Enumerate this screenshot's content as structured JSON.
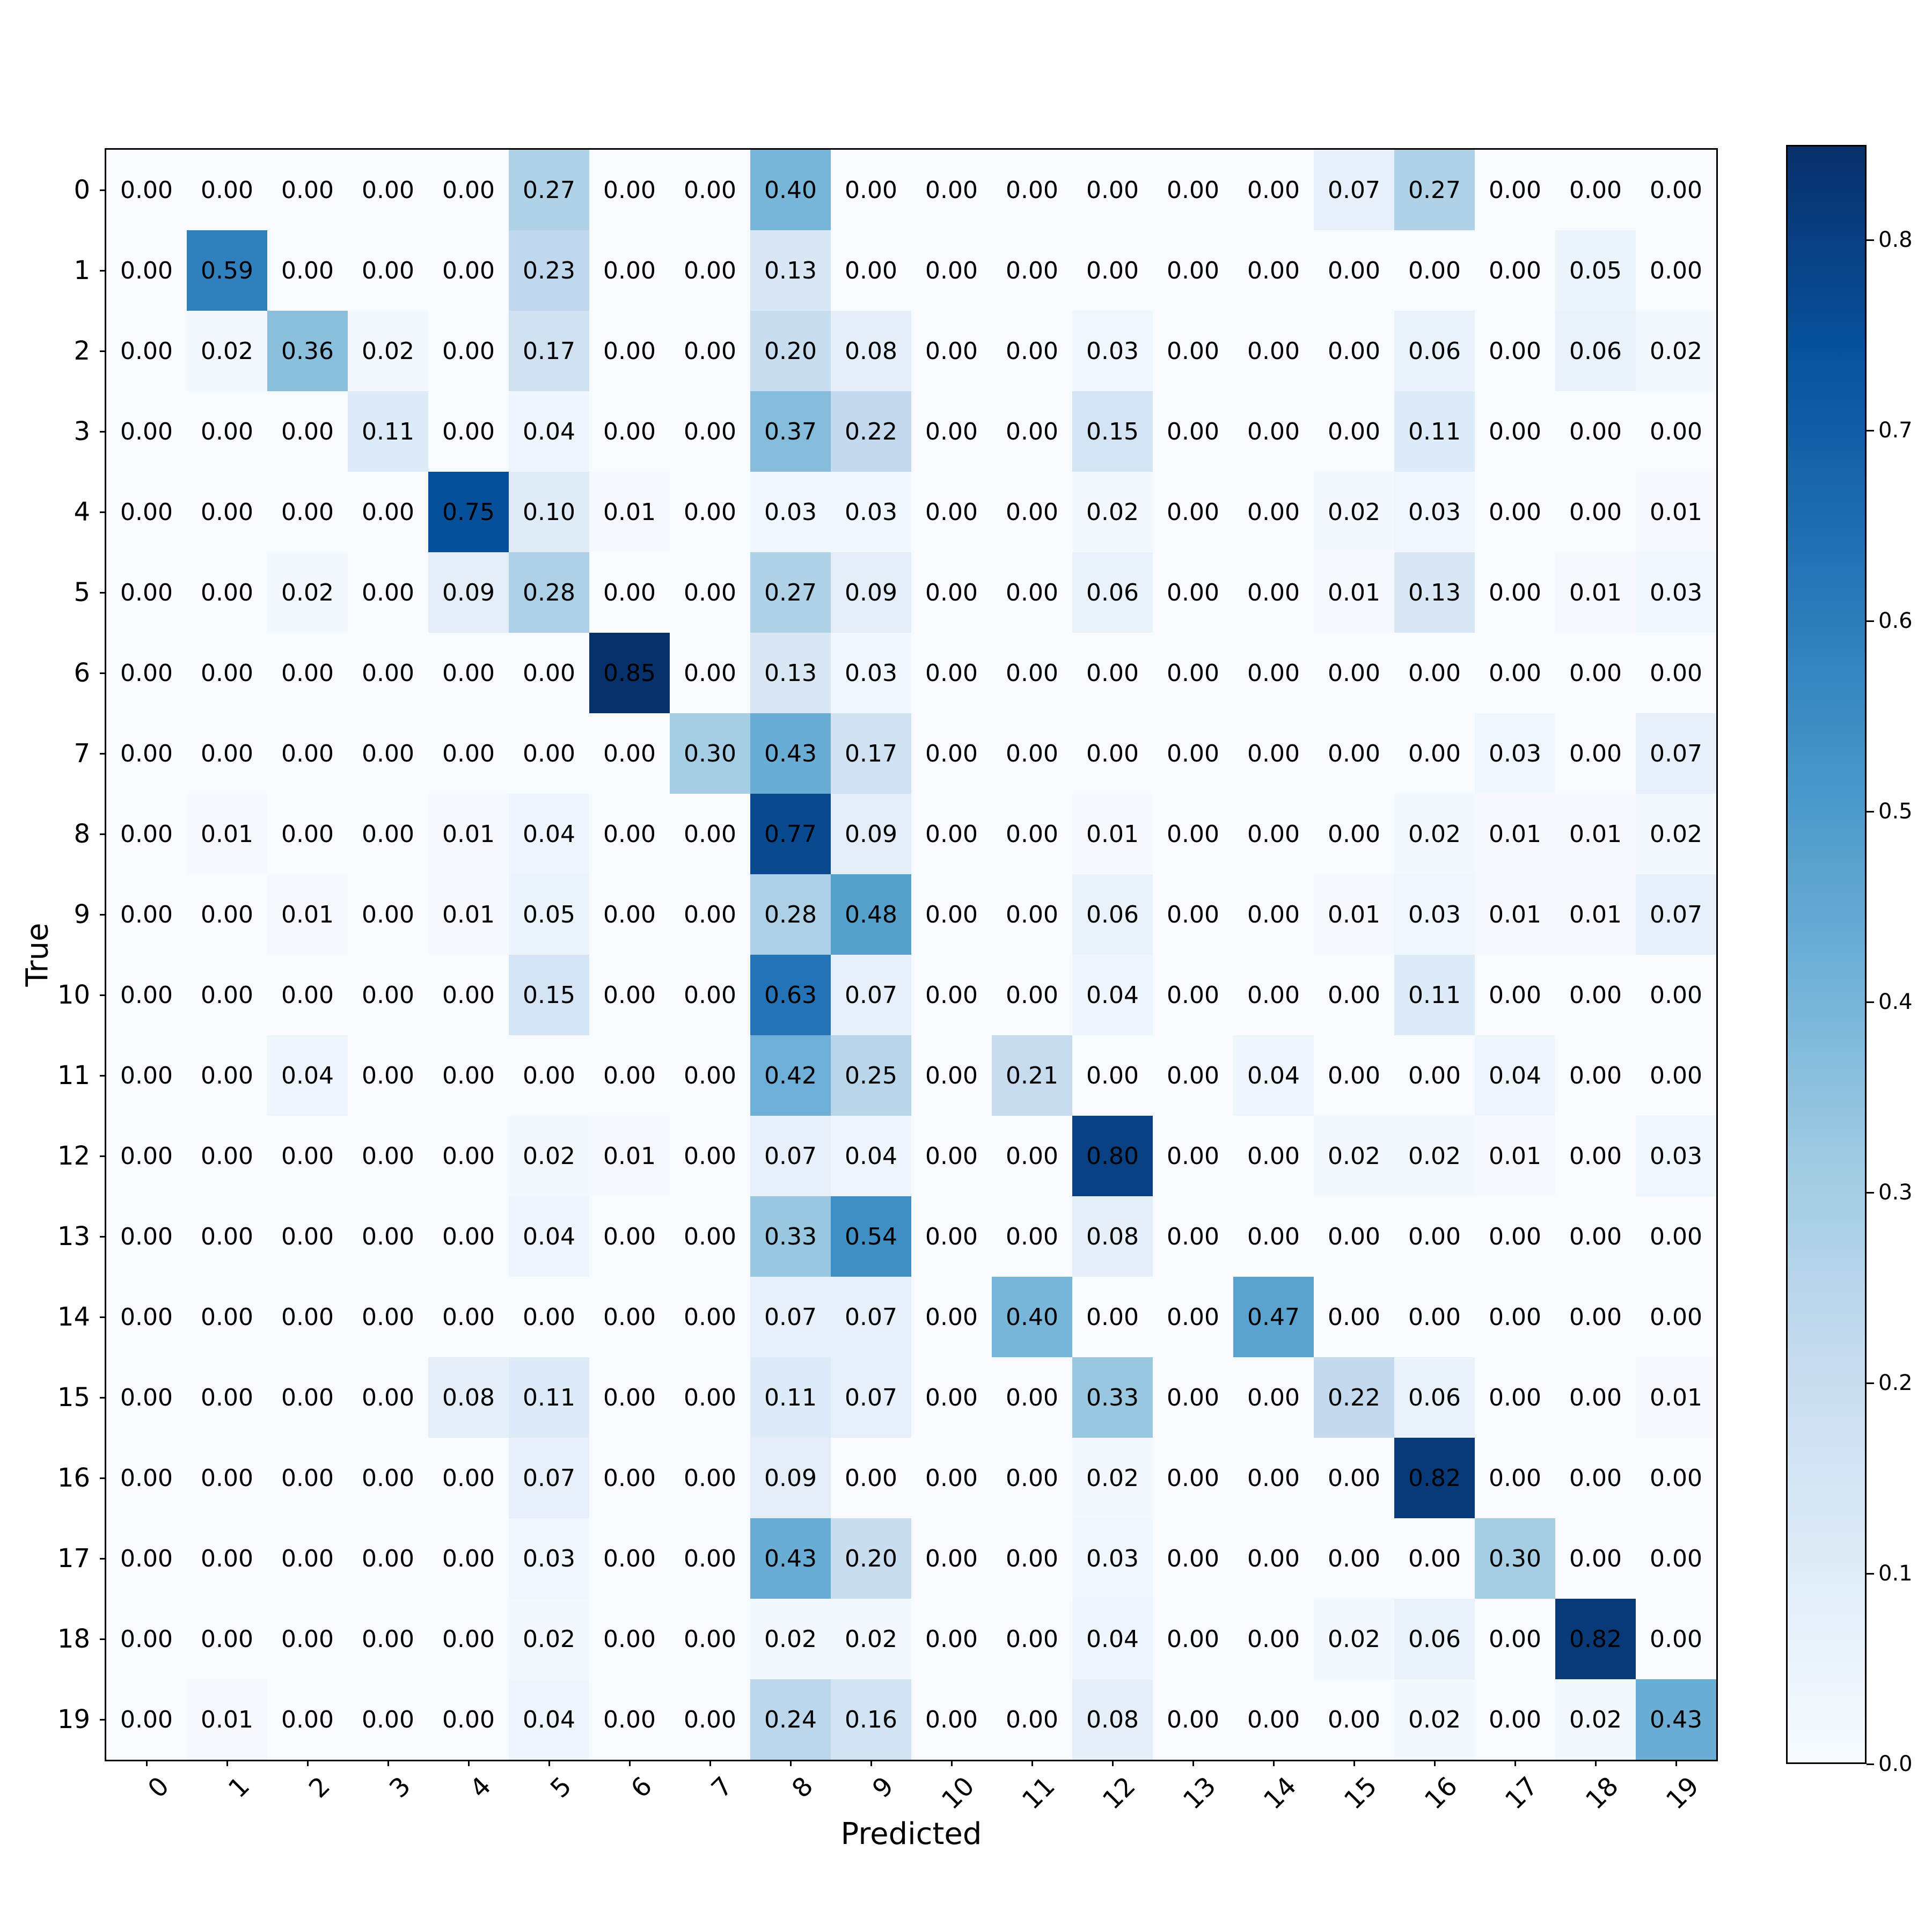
{
  "chart_data": {
    "type": "heatmap",
    "title": "",
    "xlabel": "Predicted",
    "ylabel": "True",
    "x_tick_labels": [
      "0",
      "1",
      "2",
      "3",
      "4",
      "5",
      "6",
      "7",
      "8",
      "9",
      "10",
      "11",
      "12",
      "13",
      "14",
      "15",
      "16",
      "17",
      "18",
      "19"
    ],
    "y_tick_labels": [
      "0",
      "1",
      "2",
      "3",
      "4",
      "5",
      "6",
      "7",
      "8",
      "9",
      "10",
      "11",
      "12",
      "13",
      "14",
      "15",
      "16",
      "17",
      "18",
      "19"
    ],
    "x_tick_rotation": 45,
    "colormap": "Blues",
    "colorbar": {
      "vmin": 0.0,
      "vmax": 0.85,
      "ticks": [
        0.0,
        0.1,
        0.2,
        0.3,
        0.4,
        0.5,
        0.6,
        0.7,
        0.8
      ],
      "tick_labels": [
        "0.0",
        "0.1",
        "0.2",
        "0.3",
        "0.4",
        "0.5",
        "0.6",
        "0.7",
        "0.8"
      ]
    },
    "value_format": "0.00",
    "matrix": [
      [
        0.0,
        0.0,
        0.0,
        0.0,
        0.0,
        0.27,
        0.0,
        0.0,
        0.4,
        0.0,
        0.0,
        0.0,
        0.0,
        0.0,
        0.0,
        0.07,
        0.27,
        0.0,
        0.0,
        0.0
      ],
      [
        0.0,
        0.59,
        0.0,
        0.0,
        0.0,
        0.23,
        0.0,
        0.0,
        0.13,
        0.0,
        0.0,
        0.0,
        0.0,
        0.0,
        0.0,
        0.0,
        0.0,
        0.0,
        0.05,
        0.0
      ],
      [
        0.0,
        0.02,
        0.36,
        0.02,
        0.0,
        0.17,
        0.0,
        0.0,
        0.2,
        0.08,
        0.0,
        0.0,
        0.03,
        0.0,
        0.0,
        0.0,
        0.06,
        0.0,
        0.06,
        0.02
      ],
      [
        0.0,
        0.0,
        0.0,
        0.11,
        0.0,
        0.04,
        0.0,
        0.0,
        0.37,
        0.22,
        0.0,
        0.0,
        0.15,
        0.0,
        0.0,
        0.0,
        0.11,
        0.0,
        0.0,
        0.0
      ],
      [
        0.0,
        0.0,
        0.0,
        0.0,
        0.75,
        0.1,
        0.01,
        0.0,
        0.03,
        0.03,
        0.0,
        0.0,
        0.02,
        0.0,
        0.0,
        0.02,
        0.03,
        0.0,
        0.0,
        0.01
      ],
      [
        0.0,
        0.0,
        0.02,
        0.0,
        0.09,
        0.28,
        0.0,
        0.0,
        0.27,
        0.09,
        0.0,
        0.0,
        0.06,
        0.0,
        0.0,
        0.01,
        0.13,
        0.0,
        0.01,
        0.03
      ],
      [
        0.0,
        0.0,
        0.0,
        0.0,
        0.0,
        0.0,
        0.85,
        0.0,
        0.13,
        0.03,
        0.0,
        0.0,
        0.0,
        0.0,
        0.0,
        0.0,
        0.0,
        0.0,
        0.0,
        0.0
      ],
      [
        0.0,
        0.0,
        0.0,
        0.0,
        0.0,
        0.0,
        0.0,
        0.3,
        0.43,
        0.17,
        0.0,
        0.0,
        0.0,
        0.0,
        0.0,
        0.0,
        0.0,
        0.03,
        0.0,
        0.07
      ],
      [
        0.0,
        0.01,
        0.0,
        0.0,
        0.01,
        0.04,
        0.0,
        0.0,
        0.77,
        0.09,
        0.0,
        0.0,
        0.01,
        0.0,
        0.0,
        0.0,
        0.02,
        0.01,
        0.01,
        0.02
      ],
      [
        0.0,
        0.0,
        0.01,
        0.0,
        0.01,
        0.05,
        0.0,
        0.0,
        0.28,
        0.48,
        0.0,
        0.0,
        0.06,
        0.0,
        0.0,
        0.01,
        0.03,
        0.01,
        0.01,
        0.07
      ],
      [
        0.0,
        0.0,
        0.0,
        0.0,
        0.0,
        0.15,
        0.0,
        0.0,
        0.63,
        0.07,
        0.0,
        0.0,
        0.04,
        0.0,
        0.0,
        0.0,
        0.11,
        0.0,
        0.0,
        0.0
      ],
      [
        0.0,
        0.0,
        0.04,
        0.0,
        0.0,
        0.0,
        0.0,
        0.0,
        0.42,
        0.25,
        0.0,
        0.21,
        0.0,
        0.0,
        0.04,
        0.0,
        0.0,
        0.04,
        0.0,
        0.0
      ],
      [
        0.0,
        0.0,
        0.0,
        0.0,
        0.0,
        0.02,
        0.01,
        0.0,
        0.07,
        0.04,
        0.0,
        0.0,
        0.8,
        0.0,
        0.0,
        0.02,
        0.02,
        0.01,
        0.0,
        0.03
      ],
      [
        0.0,
        0.0,
        0.0,
        0.0,
        0.0,
        0.04,
        0.0,
        0.0,
        0.33,
        0.54,
        0.0,
        0.0,
        0.08,
        0.0,
        0.0,
        0.0,
        0.0,
        0.0,
        0.0,
        0.0
      ],
      [
        0.0,
        0.0,
        0.0,
        0.0,
        0.0,
        0.0,
        0.0,
        0.0,
        0.07,
        0.07,
        0.0,
        0.4,
        0.0,
        0.0,
        0.47,
        0.0,
        0.0,
        0.0,
        0.0,
        0.0
      ],
      [
        0.0,
        0.0,
        0.0,
        0.0,
        0.08,
        0.11,
        0.0,
        0.0,
        0.11,
        0.07,
        0.0,
        0.0,
        0.33,
        0.0,
        0.0,
        0.22,
        0.06,
        0.0,
        0.0,
        0.01
      ],
      [
        0.0,
        0.0,
        0.0,
        0.0,
        0.0,
        0.07,
        0.0,
        0.0,
        0.09,
        0.0,
        0.0,
        0.0,
        0.02,
        0.0,
        0.0,
        0.0,
        0.82,
        0.0,
        0.0,
        0.0
      ],
      [
        0.0,
        0.0,
        0.0,
        0.0,
        0.0,
        0.03,
        0.0,
        0.0,
        0.43,
        0.2,
        0.0,
        0.0,
        0.03,
        0.0,
        0.0,
        0.0,
        0.0,
        0.3,
        0.0,
        0.0
      ],
      [
        0.0,
        0.0,
        0.0,
        0.0,
        0.0,
        0.02,
        0.0,
        0.0,
        0.02,
        0.02,
        0.0,
        0.0,
        0.04,
        0.0,
        0.0,
        0.02,
        0.06,
        0.0,
        0.82,
        0.0
      ],
      [
        0.0,
        0.01,
        0.0,
        0.0,
        0.0,
        0.04,
        0.0,
        0.0,
        0.24,
        0.16,
        0.0,
        0.0,
        0.08,
        0.0,
        0.0,
        0.0,
        0.02,
        0.0,
        0.02,
        0.43
      ]
    ],
    "grid": false,
    "legend": "colorbar-right"
  },
  "colors": {
    "cmap_stops": [
      "#f7fbff",
      "#deebf7",
      "#c6dbef",
      "#9ecae1",
      "#6baed6",
      "#4292c6",
      "#2171b5",
      "#08519c",
      "#08306b"
    ],
    "text": "#000000",
    "frame": "#000000"
  }
}
